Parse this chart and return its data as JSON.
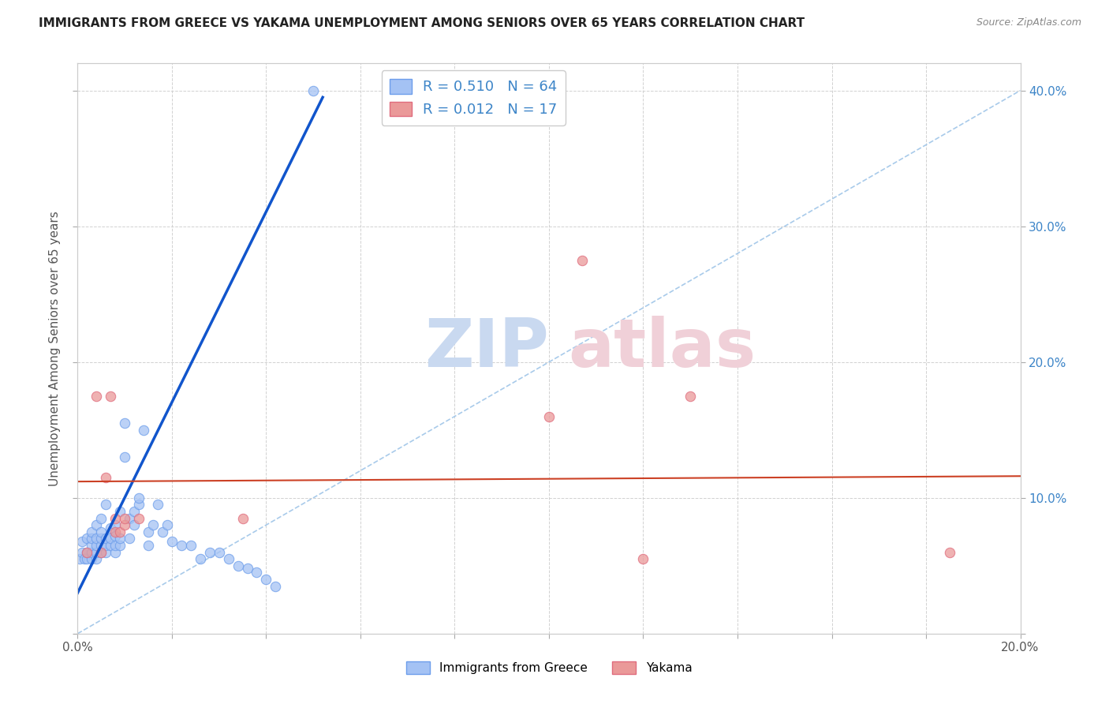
{
  "title": "IMMIGRANTS FROM GREECE VS YAKAMA UNEMPLOYMENT AMONG SENIORS OVER 65 YEARS CORRELATION CHART",
  "source": "Source: ZipAtlas.com",
  "ylabel": "Unemployment Among Seniors over 65 years",
  "xlim": [
    0.0,
    0.2
  ],
  "ylim": [
    0.0,
    0.42
  ],
  "xticks": [
    0.0,
    0.02,
    0.04,
    0.06,
    0.08,
    0.1,
    0.12,
    0.14,
    0.16,
    0.18,
    0.2
  ],
  "yticks": [
    0.0,
    0.1,
    0.2,
    0.3,
    0.4
  ],
  "yticklabels_right": [
    "",
    "10.0%",
    "20.0%",
    "30.0%",
    "40.0%"
  ],
  "blue_color": "#a4c2f4",
  "blue_edge_color": "#6d9eeb",
  "pink_color": "#ea9999",
  "pink_edge_color": "#e06c7e",
  "blue_line_color": "#1155cc",
  "pink_line_color": "#cc4125",
  "dashed_line_color": "#9fc5e8",
  "watermark_zip_color": "#c9d9f0",
  "watermark_atlas_color": "#f0d0d8",
  "R_blue": 0.51,
  "N_blue": 64,
  "R_pink": 0.012,
  "N_pink": 17,
  "blue_scatter_x": [
    0.0005,
    0.001,
    0.001,
    0.0015,
    0.002,
    0.002,
    0.002,
    0.003,
    0.003,
    0.003,
    0.003,
    0.003,
    0.004,
    0.004,
    0.004,
    0.004,
    0.004,
    0.005,
    0.005,
    0.005,
    0.005,
    0.005,
    0.006,
    0.006,
    0.006,
    0.006,
    0.007,
    0.007,
    0.007,
    0.008,
    0.008,
    0.008,
    0.008,
    0.009,
    0.009,
    0.009,
    0.01,
    0.01,
    0.011,
    0.011,
    0.012,
    0.012,
    0.013,
    0.013,
    0.014,
    0.015,
    0.015,
    0.016,
    0.017,
    0.018,
    0.019,
    0.02,
    0.022,
    0.024,
    0.026,
    0.028,
    0.03,
    0.032,
    0.034,
    0.036,
    0.038,
    0.04,
    0.042,
    0.05
  ],
  "blue_scatter_y": [
    0.055,
    0.06,
    0.068,
    0.055,
    0.055,
    0.06,
    0.07,
    0.055,
    0.06,
    0.065,
    0.07,
    0.075,
    0.055,
    0.06,
    0.065,
    0.07,
    0.08,
    0.06,
    0.065,
    0.07,
    0.075,
    0.085,
    0.06,
    0.065,
    0.07,
    0.095,
    0.065,
    0.07,
    0.078,
    0.06,
    0.065,
    0.072,
    0.08,
    0.065,
    0.07,
    0.09,
    0.13,
    0.155,
    0.07,
    0.085,
    0.08,
    0.09,
    0.095,
    0.1,
    0.15,
    0.065,
    0.075,
    0.08,
    0.095,
    0.075,
    0.08,
    0.068,
    0.065,
    0.065,
    0.055,
    0.06,
    0.06,
    0.055,
    0.05,
    0.048,
    0.045,
    0.04,
    0.035,
    0.4
  ],
  "pink_scatter_x": [
    0.002,
    0.004,
    0.005,
    0.006,
    0.007,
    0.008,
    0.008,
    0.009,
    0.01,
    0.01,
    0.013,
    0.035,
    0.1,
    0.107,
    0.12,
    0.13,
    0.185
  ],
  "pink_scatter_y": [
    0.06,
    0.175,
    0.06,
    0.115,
    0.175,
    0.085,
    0.075,
    0.075,
    0.08,
    0.085,
    0.085,
    0.085,
    0.16,
    0.275,
    0.055,
    0.175,
    0.06
  ],
  "blue_line_x": [
    0.0,
    0.052
  ],
  "blue_line_y": [
    0.03,
    0.395
  ],
  "pink_line_x": [
    0.0,
    0.2
  ],
  "pink_line_y": [
    0.112,
    0.116
  ],
  "diag_line_x": [
    0.0,
    0.2
  ],
  "diag_line_y": [
    0.0,
    0.4
  ]
}
